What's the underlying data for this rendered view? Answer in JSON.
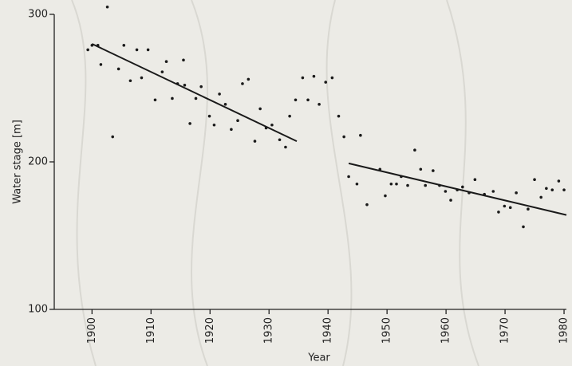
{
  "chart_data": {
    "type": "scatter",
    "xlabel": "Year",
    "ylabel": "Water stage [m]",
    "xlim": [
      1893.6,
      1980.4
    ],
    "ylim": [
      100,
      300
    ],
    "xticks": [
      1900,
      1910,
      1920,
      1930,
      1940,
      1950,
      1960,
      1970,
      1980
    ],
    "yticks": [
      100,
      200,
      300
    ],
    "color": "#1a1a1a",
    "series": [
      {
        "color": "#1a1a1a",
        "x": [
          1899.3,
          1900,
          1901,
          1901.5,
          1902.6,
          1903.5,
          1904.5,
          1905.4,
          1906.5,
          1907.6,
          1908.4,
          1909.5,
          1910.7,
          1911.9,
          1912.6,
          1913.6,
          1914.5,
          1915.5,
          1915.7,
          1916.6,
          1917.6,
          1918.5,
          1919.9,
          1920.7,
          1921.6,
          1922.6,
          1923.6,
          1924.7,
          1925.5,
          1926.5,
          1927.6,
          1928.5,
          1929.5,
          1930.5,
          1931.8,
          1932.8,
          1933.5,
          1934.5,
          1935.7,
          1936.6,
          1937.6,
          1938.5,
          1939.6,
          1940.7,
          1941.8,
          1942.7,
          1943.5,
          1944.9,
          1945.5,
          1946.6,
          1948.8,
          1949.7,
          1950.7,
          1951.6,
          1952.4,
          1953.5,
          1954.7,
          1955.7,
          1956.5,
          1957.8,
          1958.9,
          1959.9,
          1960.8,
          1961.9,
          1962.8,
          1963.9,
          1964.9,
          1966.5,
          1968.0,
          1968.9,
          1969.9,
          1970.9,
          1971.9,
          1973.1,
          1973.9,
          1975.0,
          1976.1,
          1977.0,
          1978.0,
          1979.1,
          1980.0
        ],
        "values": [
          276,
          279,
          279,
          266,
          305,
          217,
          263,
          279,
          255,
          276,
          257,
          276,
          242,
          261,
          268,
          243,
          253,
          269,
          252,
          226,
          243,
          251,
          231,
          225,
          246,
          239,
          222,
          228,
          253,
          256,
          214,
          236,
          223,
          225,
          215,
          210,
          231,
          242,
          257,
          242,
          258,
          239,
          254,
          257,
          231,
          217,
          190,
          185,
          218,
          171,
          195,
          177,
          185,
          185,
          190,
          184,
          208,
          195,
          184,
          194,
          184,
          180,
          174,
          181,
          183,
          179,
          188,
          178,
          180,
          166,
          170,
          169,
          179,
          156,
          168,
          188,
          176,
          182,
          181,
          187,
          181
        ]
      }
    ],
    "trend_lines": [
      {
        "color": "#1a1a1a",
        "x": [
          1900,
          1934.7
        ],
        "values": [
          280,
          214
        ]
      },
      {
        "color": "#1a1a1a",
        "x": [
          1943.5,
          1980.4
        ],
        "values": [
          199,
          164
        ]
      }
    ]
  }
}
